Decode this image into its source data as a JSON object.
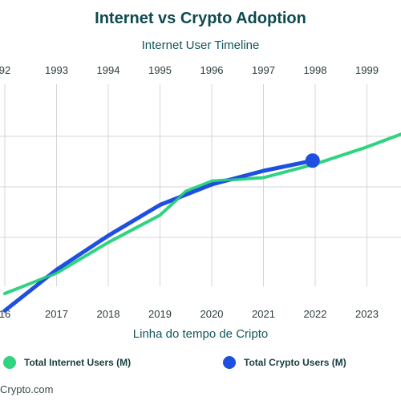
{
  "page": {
    "title": "Internet vs Crypto Adoption",
    "source": "Crypto.com"
  },
  "colors": {
    "internet": "#2ed47f",
    "crypto": "#1f4fe0",
    "grid": "#d6d6d6",
    "title": "#0f4a50"
  },
  "legend": {
    "internet_label": "Total Internet Users (M)",
    "crypto_label": "Total Crypto Users (M)",
    "internet_icon": "green-dot-icon",
    "crypto_icon": "blue-dot-icon"
  },
  "chart_data": {
    "type": "line",
    "title": "Internet vs Crypto Adoption",
    "x_top_label": "Internet User Timeline",
    "x_bottom_label": "Linha do tempo de Cripto",
    "top_ticks": [
      "92",
      "1993",
      "1994",
      "1995",
      "1996",
      "1997",
      "1998",
      "1999"
    ],
    "bottom_ticks": [
      "16",
      "2017",
      "2018",
      "2019",
      "2020",
      "2021",
      "2022",
      "2023"
    ],
    "grid": true,
    "legend_position": "bottom",
    "series": [
      {
        "name": "Total Internet Users (M)",
        "axis": "top",
        "x": [
          1992.0,
          1992.5,
          1993.0,
          1994.0,
          1995.0,
          1995.5,
          1996.0,
          1997.0,
          1998.0,
          1999.0,
          1999.7
        ],
        "y": [
          1.4,
          1.55,
          1.7,
          2.15,
          2.55,
          2.9,
          3.05,
          3.1,
          3.3,
          3.55,
          3.75
        ]
      },
      {
        "name": "Total Crypto Users (M)",
        "axis": "bottom",
        "x": [
          2016.0,
          2016.5,
          2017.0,
          2018.0,
          2019.0,
          2020.0,
          2021.0,
          2021.95
        ],
        "y": [
          1.15,
          1.45,
          1.75,
          2.25,
          2.7,
          3.0,
          3.2,
          3.35
        ],
        "highlight_last": true
      }
    ]
  }
}
